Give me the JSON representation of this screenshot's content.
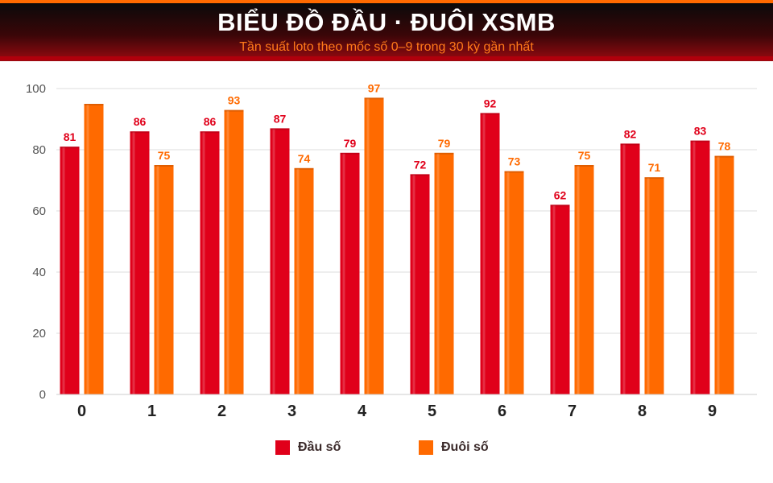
{
  "header": {
    "title": "BIỂU ĐỒ ĐẦU · ĐUÔI XSMB",
    "subtitle": "Tần suất loto theo mốc số 0–9 trong 30 kỳ gần nhất"
  },
  "colors": {
    "dau": "#e0001a",
    "duoi": "#ff6a00",
    "grid": "#dddddd",
    "axis_text": "#555555",
    "category_text": "#222222"
  },
  "chart_data": {
    "type": "bar",
    "title": "BIỂU ĐỒ ĐẦU · ĐUÔI XSMB",
    "subtitle": "Tần suất loto theo mốc số 0–9 trong 30 kỳ gần nhất",
    "categories": [
      "0",
      "1",
      "2",
      "3",
      "4",
      "5",
      "6",
      "7",
      "8",
      "9"
    ],
    "series": [
      {
        "name": "Đầu số",
        "values": [
          81,
          86,
          86,
          87,
          79,
          72,
          92,
          62,
          82,
          83
        ],
        "labels": [
          "81",
          "86",
          "86",
          "87",
          "79",
          "72",
          "92",
          "62",
          "82",
          "83"
        ]
      },
      {
        "name": "Đuôi số",
        "values": [
          95,
          75,
          93,
          74,
          97,
          79,
          73,
          75,
          71,
          78
        ],
        "labels": [
          "",
          "75",
          "93",
          "74",
          "97",
          "79",
          "73",
          "75",
          "71",
          "78"
        ]
      }
    ],
    "ylim": [
      0,
      100
    ],
    "yticks": [
      "0",
      "20",
      "40",
      "60",
      "80",
      "100"
    ],
    "ytick_values": [
      0,
      20,
      40,
      60,
      80,
      100
    ],
    "grid": true,
    "legend_position": "bottom-center"
  },
  "legend": {
    "items": [
      {
        "label": "Đầu số"
      },
      {
        "label": "Đuôi số"
      }
    ]
  }
}
